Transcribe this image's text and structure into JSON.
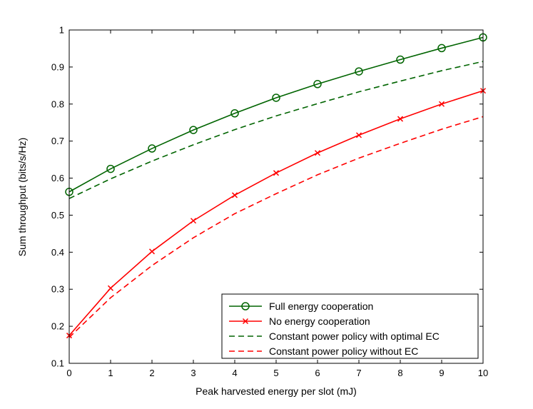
{
  "chart_data": {
    "type": "line",
    "title": "",
    "xlabel": "Peak harvested energy per slot (mJ)",
    "ylabel": "Sum throughput (bits/s/Hz)",
    "xlim": [
      0,
      10
    ],
    "ylim": [
      0.1,
      1
    ],
    "x_ticks": [
      0,
      1,
      2,
      3,
      4,
      5,
      6,
      7,
      8,
      9,
      10
    ],
    "y_ticks": [
      0.1,
      0.2,
      0.3,
      0.4,
      0.5,
      0.6,
      0.7,
      0.8,
      0.9,
      1
    ],
    "y_tick_labels": [
      "0.1",
      "0.2",
      "0.3",
      "0.4",
      "0.5",
      "0.6",
      "0.7",
      "0.8",
      "0.9",
      "1"
    ],
    "grid": false,
    "legend_position": "bottom-right",
    "x": [
      0,
      1,
      2,
      3,
      4,
      5,
      6,
      7,
      8,
      9,
      10
    ],
    "series": [
      {
        "name": "Full energy cooperation",
        "color": "#006400",
        "dash": "solid",
        "marker": "circle",
        "values": [
          0.563,
          0.625,
          0.68,
          0.73,
          0.775,
          0.817,
          0.854,
          0.888,
          0.92,
          0.951,
          0.98
        ]
      },
      {
        "name": "No energy cooperation",
        "color": "#ff0000",
        "dash": "solid",
        "marker": "x",
        "values": [
          0.175,
          0.303,
          0.402,
          0.485,
          0.554,
          0.614,
          0.668,
          0.716,
          0.76,
          0.8,
          0.836
        ]
      },
      {
        "name": "Constant power policy with optimal EC",
        "color": "#006400",
        "dash": "dashed",
        "marker": "none",
        "values": [
          0.545,
          0.598,
          0.646,
          0.69,
          0.731,
          0.768,
          0.801,
          0.833,
          0.862,
          0.89,
          0.915
        ]
      },
      {
        "name": "Constant power policy without EC",
        "color": "#ff0000",
        "dash": "dashed",
        "marker": "none",
        "values": [
          0.17,
          0.277,
          0.364,
          0.439,
          0.504,
          0.558,
          0.609,
          0.654,
          0.694,
          0.732,
          0.766
        ]
      }
    ]
  }
}
